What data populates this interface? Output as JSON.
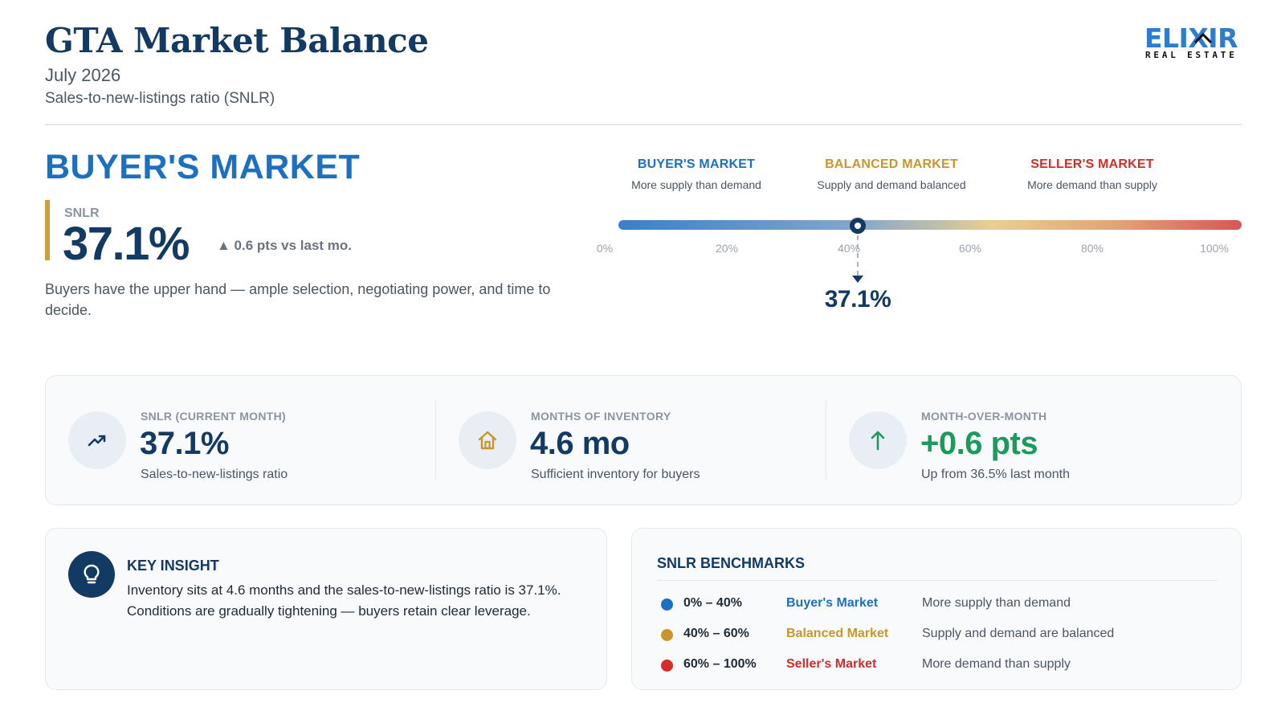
{
  "header": {
    "title": "GTA Market Balance",
    "date": "July 2026",
    "subtitle": "Sales-to-new-listings ratio (SNLR)"
  },
  "logo": {
    "wordmark": "ELIXIR",
    "tagline": "REAL ESTATE",
    "color": "#2a7dd0"
  },
  "status": {
    "title": "BUYER'S MARKET",
    "metric_label": "SNLR",
    "value": "37.1%",
    "change": "▲ 0.6 pts vs last mo.",
    "description": "Buyers have the upper hand — ample selection, negotiating power, and time to decide."
  },
  "gauge": {
    "zones": [
      {
        "title": "BUYER'S MARKET",
        "subtitle": "More supply than demand",
        "color": "#1d6fbf"
      },
      {
        "title": "BALANCED MARKET",
        "subtitle": "Supply and demand balanced",
        "color": "#c9962b"
      },
      {
        "title": "SELLER'S MARKET",
        "subtitle": "More demand than supply",
        "color": "#d42b2b"
      }
    ],
    "ticks": [
      "0%",
      "20%",
      "40%",
      "60%",
      "80%",
      "100%"
    ],
    "value": 37.1,
    "value_label": "37.1%"
  },
  "stats": [
    {
      "label": "SNLR (CURRENT MONTH)",
      "value": "37.1%",
      "note": "Sales-to-new-listings ratio",
      "icon": "trend-up-icon",
      "color": "#123a63"
    },
    {
      "label": "MONTHS OF INVENTORY",
      "value": "4.6 mo",
      "note": "Sufficient inventory for buyers",
      "icon": "house-icon",
      "color": "#123a63"
    },
    {
      "label": "MONTH-OVER-MONTH",
      "value": "+0.6 pts",
      "note": "Up from 36.5% last month",
      "icon": "arrow-up-icon",
      "color": "#1a9a5c"
    }
  ],
  "insight": {
    "title": "KEY INSIGHT",
    "body": "Inventory sits at 4.6 months and the sales-to-new-listings ratio is 37.1%. Conditions are gradually tightening — buyers retain clear leverage.",
    "icon": "lightbulb-icon"
  },
  "benchmarks": {
    "title": "SNLR BENCHMARKS",
    "rows": [
      {
        "range": "0% – 40%",
        "name": "Buyer's Market",
        "desc": "More supply than demand",
        "color": "#1d6fbf"
      },
      {
        "range": "40% – 60%",
        "name": "Balanced Market",
        "desc": "Supply and demand are balanced",
        "color": "#c9962b"
      },
      {
        "range": "60% – 100%",
        "name": "Seller's Market",
        "desc": "More demand than supply",
        "color": "#d42b2b"
      }
    ]
  }
}
